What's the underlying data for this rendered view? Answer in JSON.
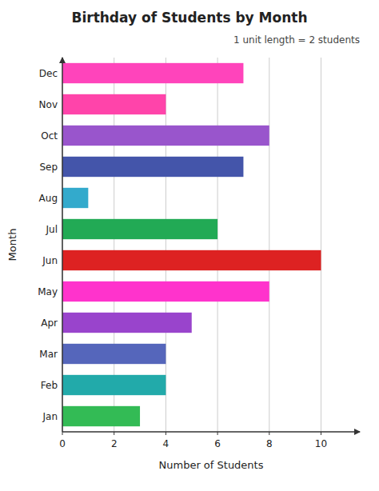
{
  "chart_data": {
    "type": "bar",
    "orientation": "horizontal",
    "title": "Birthday of Students by Month",
    "xlabel": "Number of Students",
    "ylabel": "Month",
    "annotation": "1 unit length = 2 students",
    "categories": [
      "Jan",
      "Feb",
      "Mar",
      "Apr",
      "May",
      "Jun",
      "Jul",
      "Aug",
      "Sep",
      "Oct",
      "Nov",
      "Dec"
    ],
    "values": [
      3,
      4,
      4,
      5,
      8,
      10,
      6,
      1,
      7,
      8,
      4,
      7
    ],
    "colors": [
      "#33bb55",
      "#22aaaa",
      "#5566bb",
      "#9944cc",
      "#ff33cc",
      "#dd2222",
      "#22aa55",
      "#33aacc",
      "#4455aa",
      "#9955cc",
      "#ff44aa",
      "#ff44bb"
    ],
    "xlim": [
      0,
      11.5
    ],
    "xticks": [
      0,
      2,
      4,
      6,
      8,
      10
    ],
    "grid": true
  }
}
